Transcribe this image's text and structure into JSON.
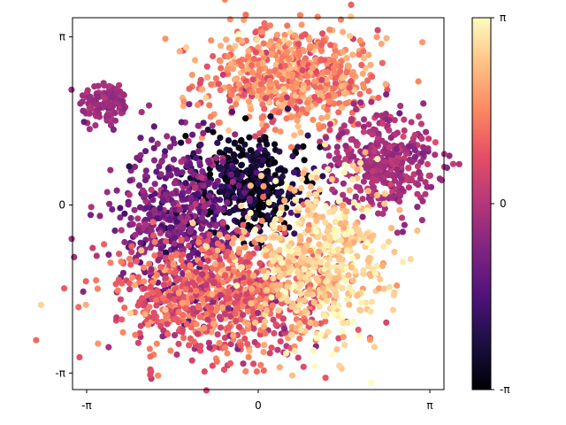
{
  "chart_data": {
    "type": "scatter",
    "title": "",
    "xlabel": "",
    "ylabel": "",
    "xlim": [
      -3.4,
      3.4
    ],
    "ylim": [
      -3.45,
      3.5
    ],
    "xticks": [
      {
        "value": -3.14159,
        "label": "-π"
      },
      {
        "value": 0,
        "label": "0"
      },
      {
        "value": 3.14159,
        "label": "π"
      }
    ],
    "yticks": [
      {
        "value": 3.14159,
        "label": "π"
      },
      {
        "value": 0,
        "label": "0"
      },
      {
        "value": -3.14159,
        "label": "-π"
      }
    ],
    "colormap": "magma",
    "color_range": [
      -3.14159,
      3.14159
    ],
    "colorbar_ticks": [
      {
        "value": 3.14159,
        "label": "π"
      },
      {
        "value": 0,
        "label": "0"
      },
      {
        "value": -3.14159,
        "label": "-π"
      }
    ],
    "grid": false,
    "legend": "none",
    "clusters": [
      {
        "name": "top-left-blob",
        "center": [
          -2.8,
          1.9
        ],
        "spread": [
          0.3,
          0.28
        ],
        "color_value": -0.3,
        "color_jitter": 0.2
      },
      {
        "name": "top-arc",
        "center": [
          0.6,
          2.4
        ],
        "spread": [
          1.0,
          0.6
        ],
        "color_value": 1.6,
        "color_jitter": 0.5
      },
      {
        "name": "right-arm",
        "center": [
          2.3,
          0.8
        ],
        "spread": [
          0.6,
          0.55
        ],
        "color_value": -0.2,
        "color_jitter": 0.3
      },
      {
        "name": "dark-core",
        "center": [
          -0.2,
          0.4
        ],
        "spread": [
          0.7,
          0.6
        ],
        "color_value": -2.6,
        "color_jitter": 0.5
      },
      {
        "name": "purple-left",
        "center": [
          -1.5,
          -0.3
        ],
        "spread": [
          0.7,
          0.9
        ],
        "color_value": -0.9,
        "color_jitter": 0.5
      },
      {
        "name": "orange-bottom",
        "center": [
          -0.6,
          -1.7
        ],
        "spread": [
          1.2,
          0.7
        ],
        "color_value": 1.0,
        "color_jitter": 0.6
      },
      {
        "name": "light-right",
        "center": [
          1.1,
          -1.0
        ],
        "spread": [
          0.8,
          0.9
        ],
        "color_value": 2.6,
        "color_jitter": 0.4
      },
      {
        "name": "outlier-bottom",
        "center": [
          -1.95,
          -3.1
        ],
        "spread": [
          0.05,
          0.03
        ],
        "color_value": 0.7,
        "color_jitter": 0.05
      }
    ]
  }
}
